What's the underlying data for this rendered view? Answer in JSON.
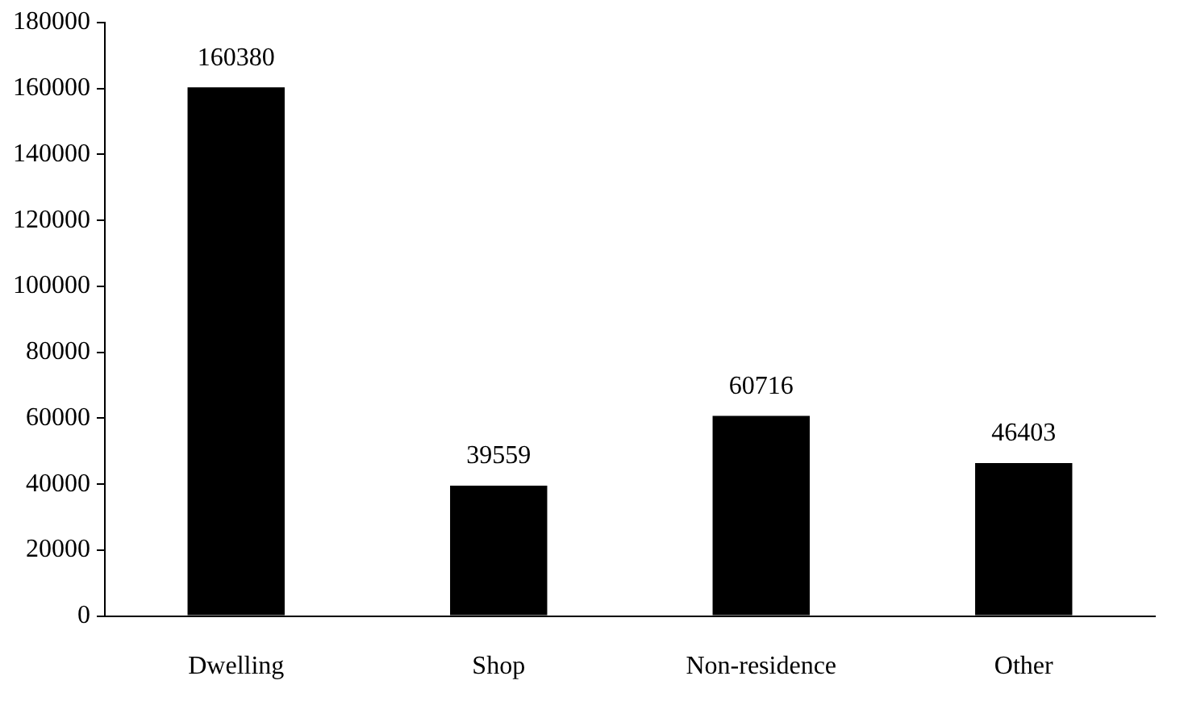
{
  "chart_data": {
    "type": "bar",
    "categories": [
      "Dwelling",
      "Shop",
      "Non-residence",
      "Other"
    ],
    "values": [
      160380,
      39559,
      60716,
      46403
    ],
    "color": "#000000",
    "ylim": [
      0,
      180000
    ],
    "yticks": [
      0,
      20000,
      40000,
      60000,
      80000,
      100000,
      120000,
      140000,
      160000,
      180000
    ],
    "grid": false,
    "legend": false,
    "data_labels": true
  }
}
